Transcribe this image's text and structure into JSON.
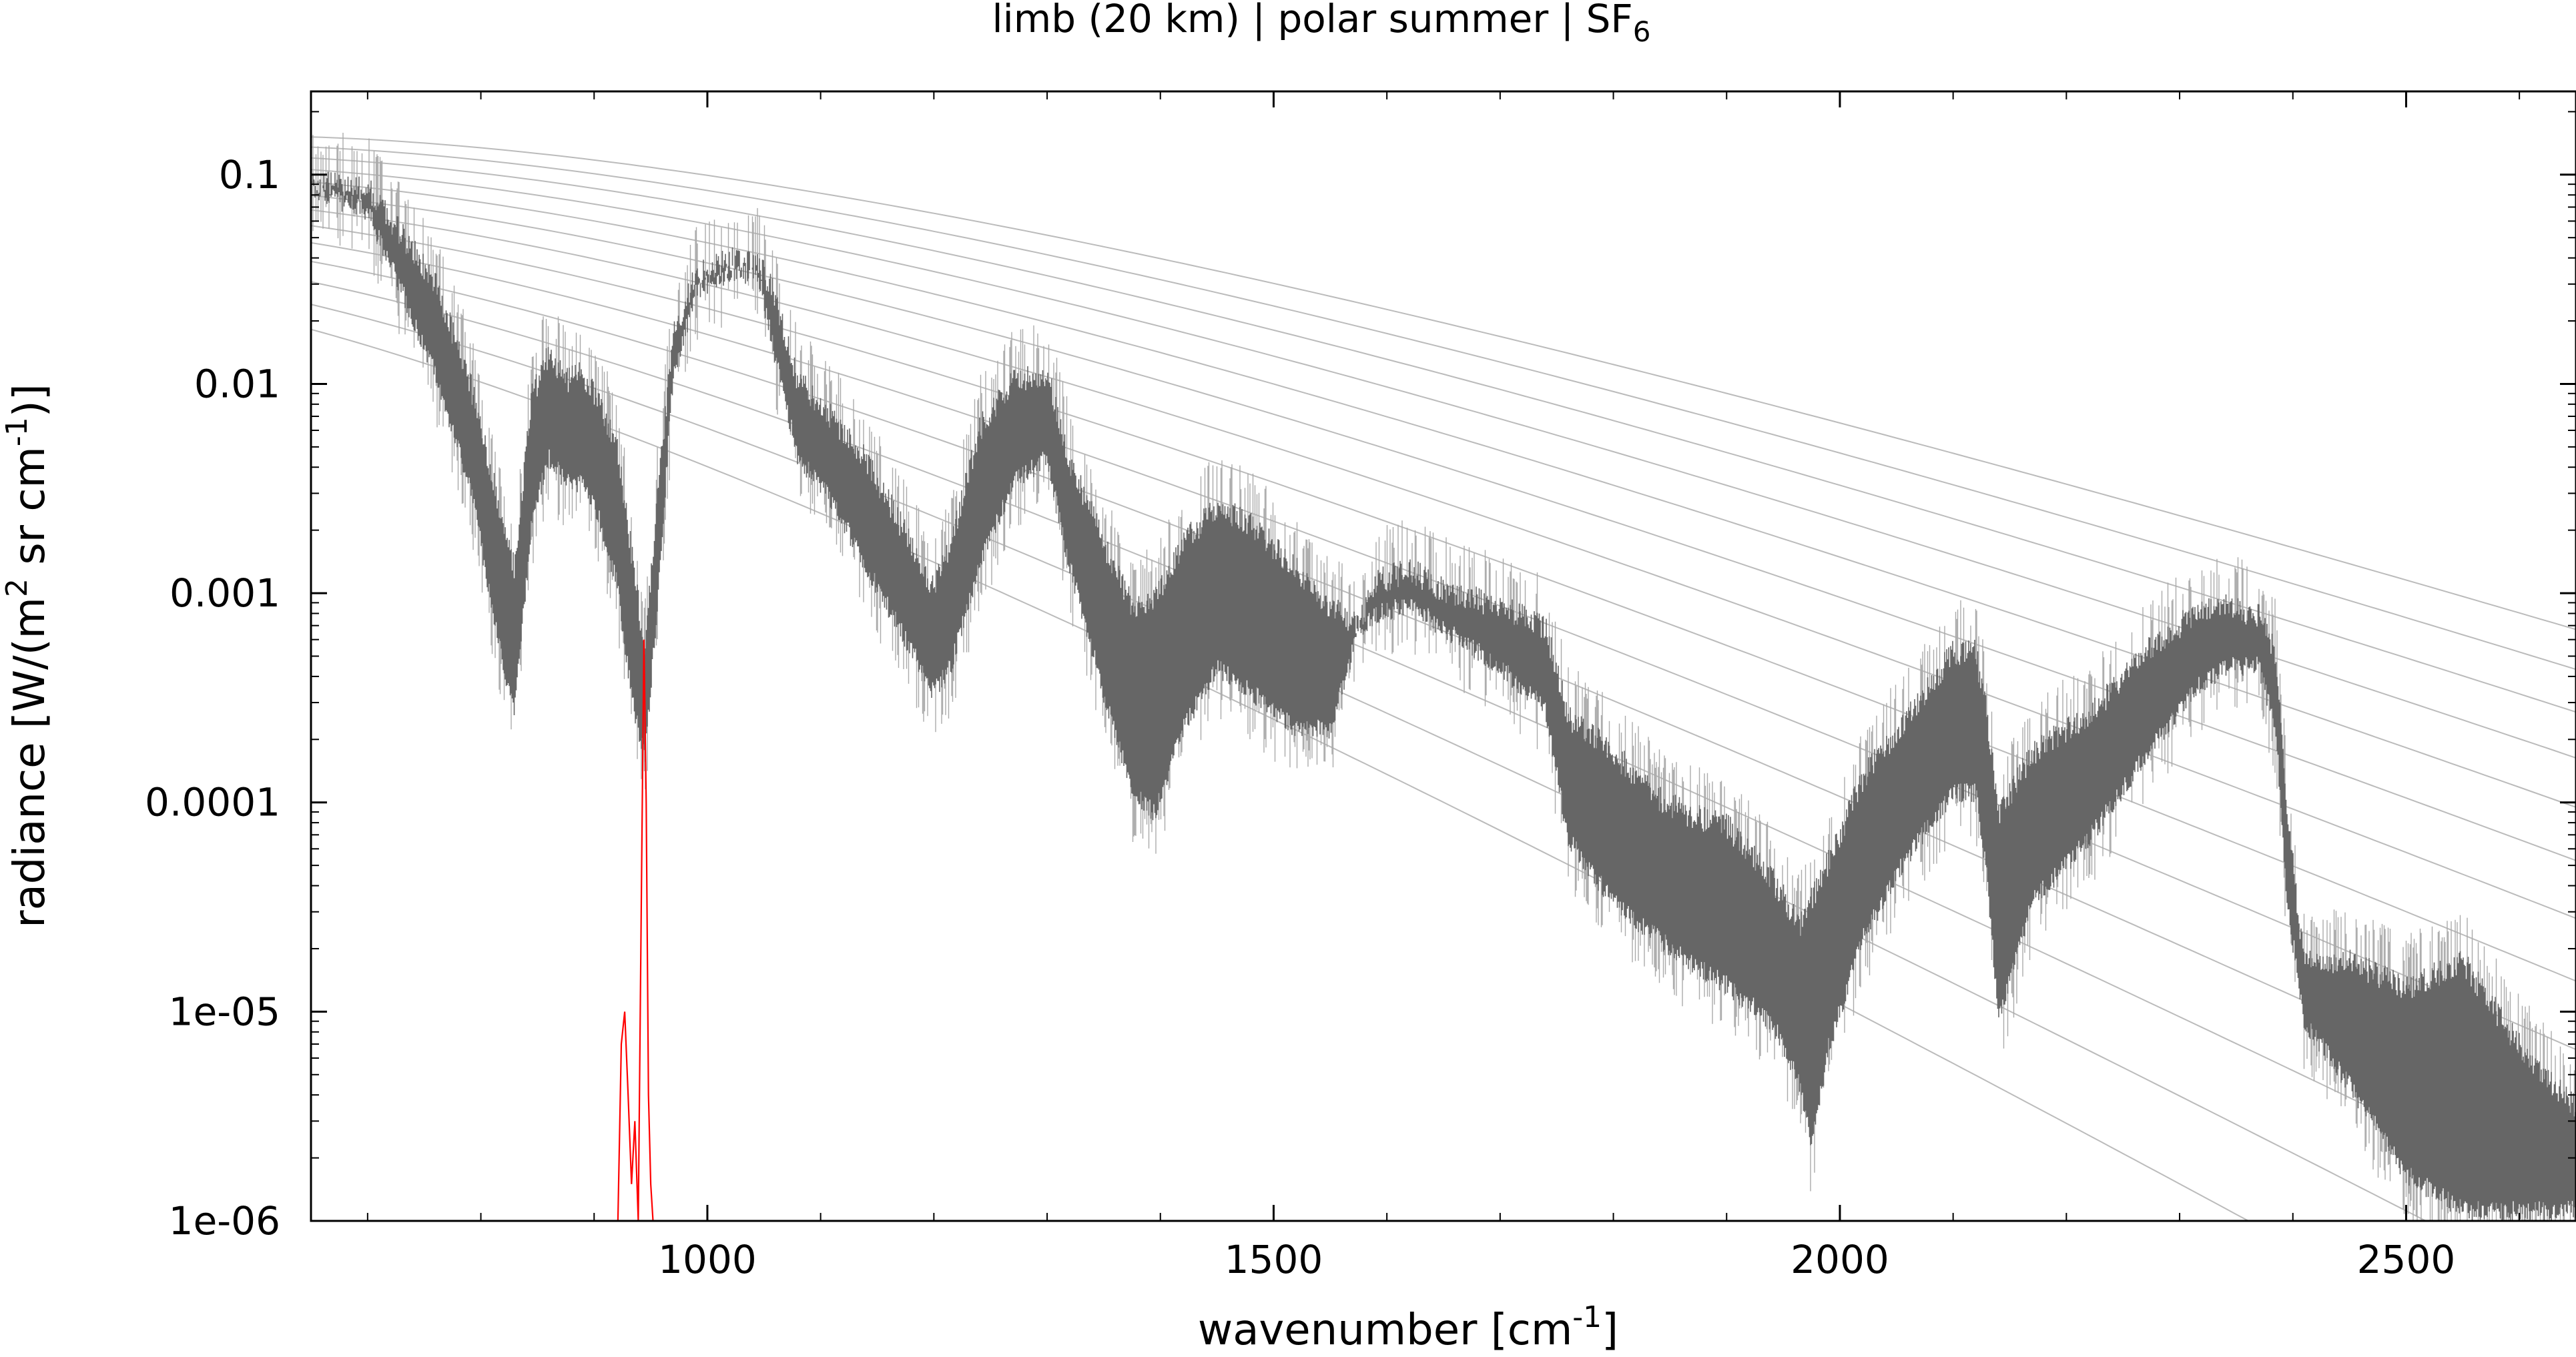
{
  "chart_data": {
    "type": "line",
    "title": "limb (20 km) | polar summer | SF",
    "title_subscript": "6",
    "xlabel": {
      "text": "wavenumber [cm",
      "sup": "-1",
      "tail": "]"
    },
    "ylabel": {
      "a": "radiance [W/(m",
      "sup1": "2",
      "b": " sr cm",
      "sup2": "-1",
      "c": ")]"
    },
    "xlim": [
      650,
      2650
    ],
    "ylim": [
      1e-06,
      0.25
    ],
    "yscale": "log",
    "grid": false,
    "legend": "none",
    "x_ticks": [
      1000,
      1500,
      2000,
      2500
    ],
    "x_tick_labels": [
      "1000",
      "1500",
      "2000",
      "2500"
    ],
    "y_ticks": [
      0.1,
      0.01,
      0.001,
      0.0001,
      1e-05,
      1e-06
    ],
    "y_tick_labels": [
      "0.1",
      "0.01",
      "0.001",
      "0.0001",
      "1e-05",
      "1e-06"
    ],
    "series": [
      {
        "role": "total-spectrum",
        "color": "#666666",
        "envelope": {
          "x": [
            650,
            700,
            730,
            760,
            790,
            820,
            830,
            845,
            860,
            875,
            890,
            905,
            920,
            935,
            945,
            955,
            970,
            990,
            1020,
            1045,
            1060,
            1080,
            1110,
            1140,
            1170,
            1200,
            1215,
            1240,
            1270,
            1300,
            1320,
            1350,
            1375,
            1395,
            1420,
            1450,
            1480,
            1520,
            1550,
            1575,
            1590,
            1620,
            1650,
            1700,
            1740,
            1760,
            1800,
            1840,
            1870,
            1900,
            1940,
            1965,
            1975,
            1990,
            2020,
            2060,
            2100,
            2120,
            2130,
            2140,
            2170,
            2220,
            2270,
            2310,
            2340,
            2370,
            2385,
            2395,
            2410,
            2450,
            2500,
            2550,
            2600,
            2650
          ],
          "upper": [
            0.105,
            0.1,
            0.06,
            0.035,
            0.012,
            0.0025,
            0.0015,
            0.01,
            0.016,
            0.012,
            0.013,
            0.009,
            0.006,
            0.0015,
            0.0006,
            0.003,
            0.02,
            0.038,
            0.045,
            0.045,
            0.03,
            0.012,
            0.008,
            0.005,
            0.0025,
            0.0012,
            0.002,
            0.007,
            0.012,
            0.013,
            0.005,
            0.002,
            0.001,
            0.0011,
            0.002,
            0.003,
            0.0025,
            0.0015,
            0.001,
            0.0008,
            0.0013,
            0.0015,
            0.0012,
            0.001,
            0.0008,
            0.0003,
            0.0002,
            0.00012,
            0.0001,
            9e-05,
            5e-05,
            3e-05,
            4e-05,
            6e-05,
            0.00015,
            0.0003,
            0.0006,
            0.0006,
            0.0003,
            0.0001,
            0.0002,
            0.0003,
            0.0006,
            0.0009,
            0.001,
            0.0009,
            0.0006,
            0.0001,
            2e-05,
            2e-05,
            1.5e-05,
            2e-05,
            8e-06,
            4e-06
          ],
          "lower": [
            0.075,
            0.06,
            0.025,
            0.01,
            0.003,
            0.0004,
            0.00025,
            0.002,
            0.004,
            0.003,
            0.003,
            0.002,
            0.001,
            0.00025,
            0.00015,
            0.0007,
            0.01,
            0.025,
            0.03,
            0.03,
            0.012,
            0.004,
            0.0025,
            0.0012,
            0.0006,
            0.0003,
            0.0004,
            0.0012,
            0.003,
            0.004,
            0.0012,
            0.0003,
            0.0001,
            8e-05,
            0.0002,
            0.0004,
            0.0003,
            0.0002,
            0.0002,
            0.0006,
            0.0007,
            0.0008,
            0.0006,
            0.0004,
            0.00025,
            6e-05,
            3e-05,
            2e-05,
            1.5e-05,
            1.2e-05,
            8e-06,
            4e-06,
            2e-06,
            6e-06,
            2e-05,
            5e-05,
            0.0001,
            0.0001,
            4e-05,
            8e-06,
            3e-05,
            6e-05,
            0.00015,
            0.0003,
            0.0004,
            0.0004,
            0.0002,
            3e-05,
            8e-06,
            4e-06,
            1.5e-06,
            1e-06,
            1e-06,
            1e-06
          ]
        }
      },
      {
        "role": "SF6-contribution",
        "color": "#ff0000",
        "x": [
          921,
          924,
          927,
          930,
          933,
          936,
          939,
          942,
          944,
          946,
          948,
          950,
          952
        ],
        "y": [
          1e-06,
          7e-06,
          1e-05,
          4e-06,
          1.5e-06,
          3e-06,
          1e-06,
          5e-05,
          0.0006,
          0.0001,
          4e-06,
          1.5e-06,
          1e-06
        ]
      }
    ],
    "reference_curves": {
      "description": "Planck blackbody radiance curves",
      "color": "#bbbbbb",
      "temperatures_K": [
        180,
        190,
        200,
        210,
        220,
        230,
        240,
        250,
        260,
        270,
        280,
        290,
        300
      ]
    }
  }
}
